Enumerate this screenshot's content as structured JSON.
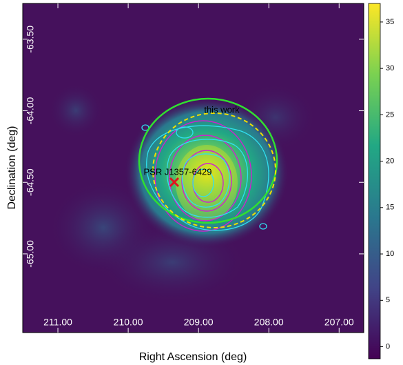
{
  "chart_data": {
    "type": "skymap",
    "x_label": "Right Ascension (deg)",
    "y_label": "Declination (deg)",
    "xlim": [
      211.5,
      206.65
    ],
    "ylim": [
      -63.25,
      -65.55
    ],
    "xticks": [
      {
        "value": 211,
        "label": "211.00"
      },
      {
        "value": 210,
        "label": "210.00"
      },
      {
        "value": 209,
        "label": "209.00"
      },
      {
        "value": 208,
        "label": "208.00"
      },
      {
        "value": 207,
        "label": "207.00"
      }
    ],
    "yticks": [
      {
        "value": -63.5,
        "label": "-63.50"
      },
      {
        "value": -64,
        "label": "-64.00"
      },
      {
        "value": -64.5,
        "label": "-64.50"
      },
      {
        "value": -65,
        "label": "-65.00"
      }
    ],
    "clim": [
      -1.3,
      37
    ],
    "cticks": [
      0,
      5,
      10,
      15,
      20,
      25,
      30,
      35
    ],
    "annotations": [
      {
        "text": "this work",
        "color": "#f0e000"
      },
      {
        "text": "PSR J1357-6429",
        "color": "#e0141e"
      }
    ]
  }
}
